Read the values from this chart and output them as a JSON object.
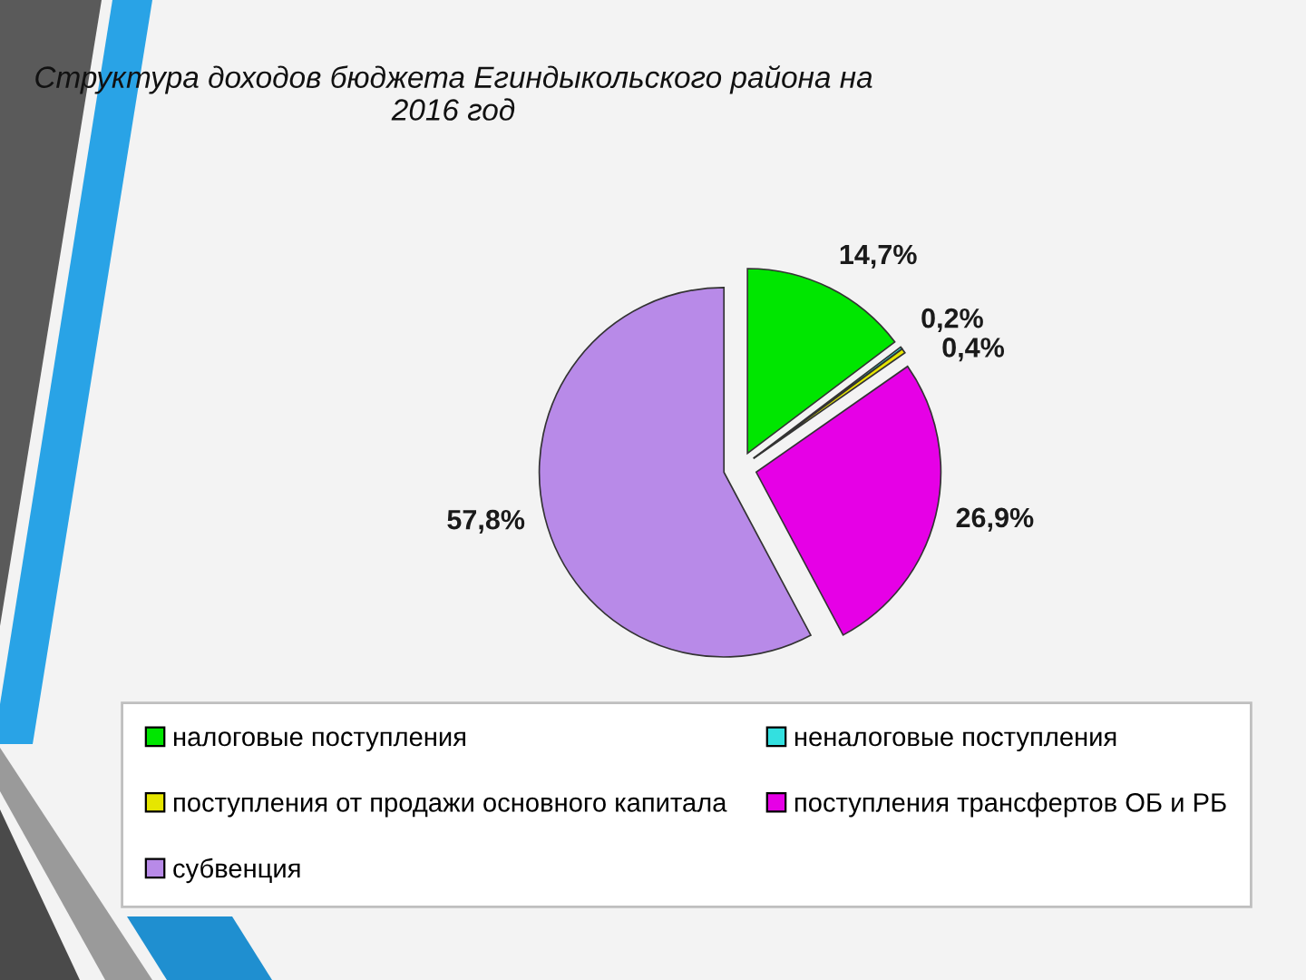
{
  "chart_data": {
    "type": "pie",
    "title": "Структура доходов бюджета Егиндыкольского района на 2016 год",
    "categories": [
      "налоговые поступления",
      "неналоговые поступления",
      "поступления от продажи основного капитала",
      "поступления трансфертов ОБ и РБ",
      "субвенция"
    ],
    "values": [
      14.7,
      0.2,
      0.4,
      26.9,
      57.8
    ],
    "colors": [
      "#00e600",
      "#33e0e0",
      "#e6e600",
      "#e600e6",
      "#b88ae8"
    ],
    "value_labels": [
      "14,7%",
      "0,2%",
      "0,4%",
      "26,9%",
      "57,8%"
    ],
    "legend": "bottom"
  }
}
